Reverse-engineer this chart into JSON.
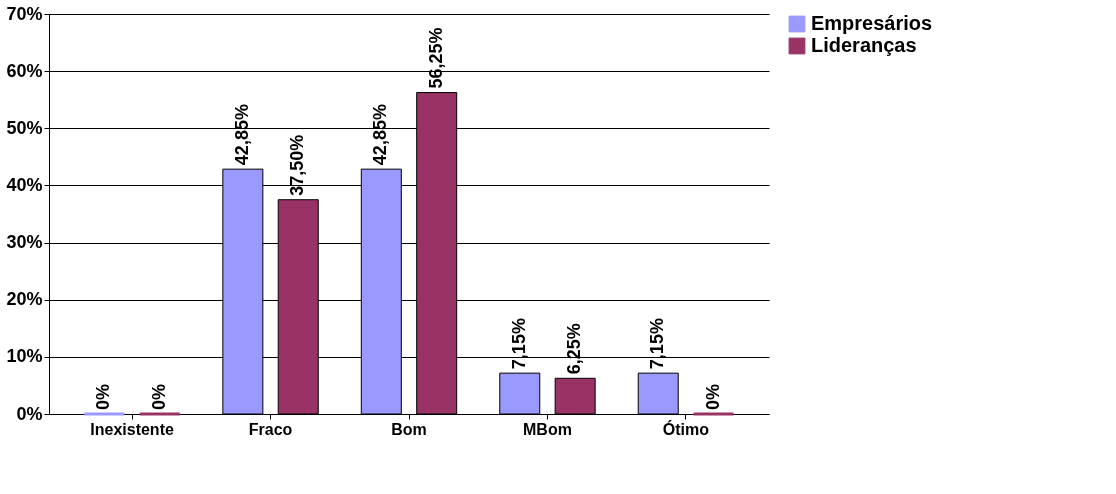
{
  "chart_data": {
    "type": "bar",
    "categories": [
      "Inexistente",
      "Fraco",
      "Bom",
      "MBom",
      "Ótimo"
    ],
    "series": [
      {
        "name": "Empresários",
        "color": "#9999ff",
        "values": [
          0,
          42.85,
          42.85,
          7.15,
          7.15
        ],
        "value_labels": [
          "0%",
          "42,85%",
          "42,85%",
          "7,15%",
          "7,15%"
        ]
      },
      {
        "name": "Lideranças",
        "color": "#993366",
        "values": [
          0,
          37.5,
          56.25,
          6.25,
          0
        ],
        "value_labels": [
          "0%",
          "37,50%",
          "56,25%",
          "6,25%",
          "0%"
        ]
      }
    ],
    "ylim": [
      0,
      70
    ],
    "yticks": [
      {
        "value": 0,
        "label": "0%"
      },
      {
        "value": 10,
        "label": "10%"
      },
      {
        "value": 20,
        "label": "20%"
      },
      {
        "value": 30,
        "label": "30%"
      },
      {
        "value": 40,
        "label": "40%"
      },
      {
        "value": 50,
        "label": "50%"
      },
      {
        "value": 60,
        "label": "60%"
      },
      {
        "value": 70,
        "label": "70%"
      }
    ],
    "grid": "y",
    "legend": "right"
  }
}
